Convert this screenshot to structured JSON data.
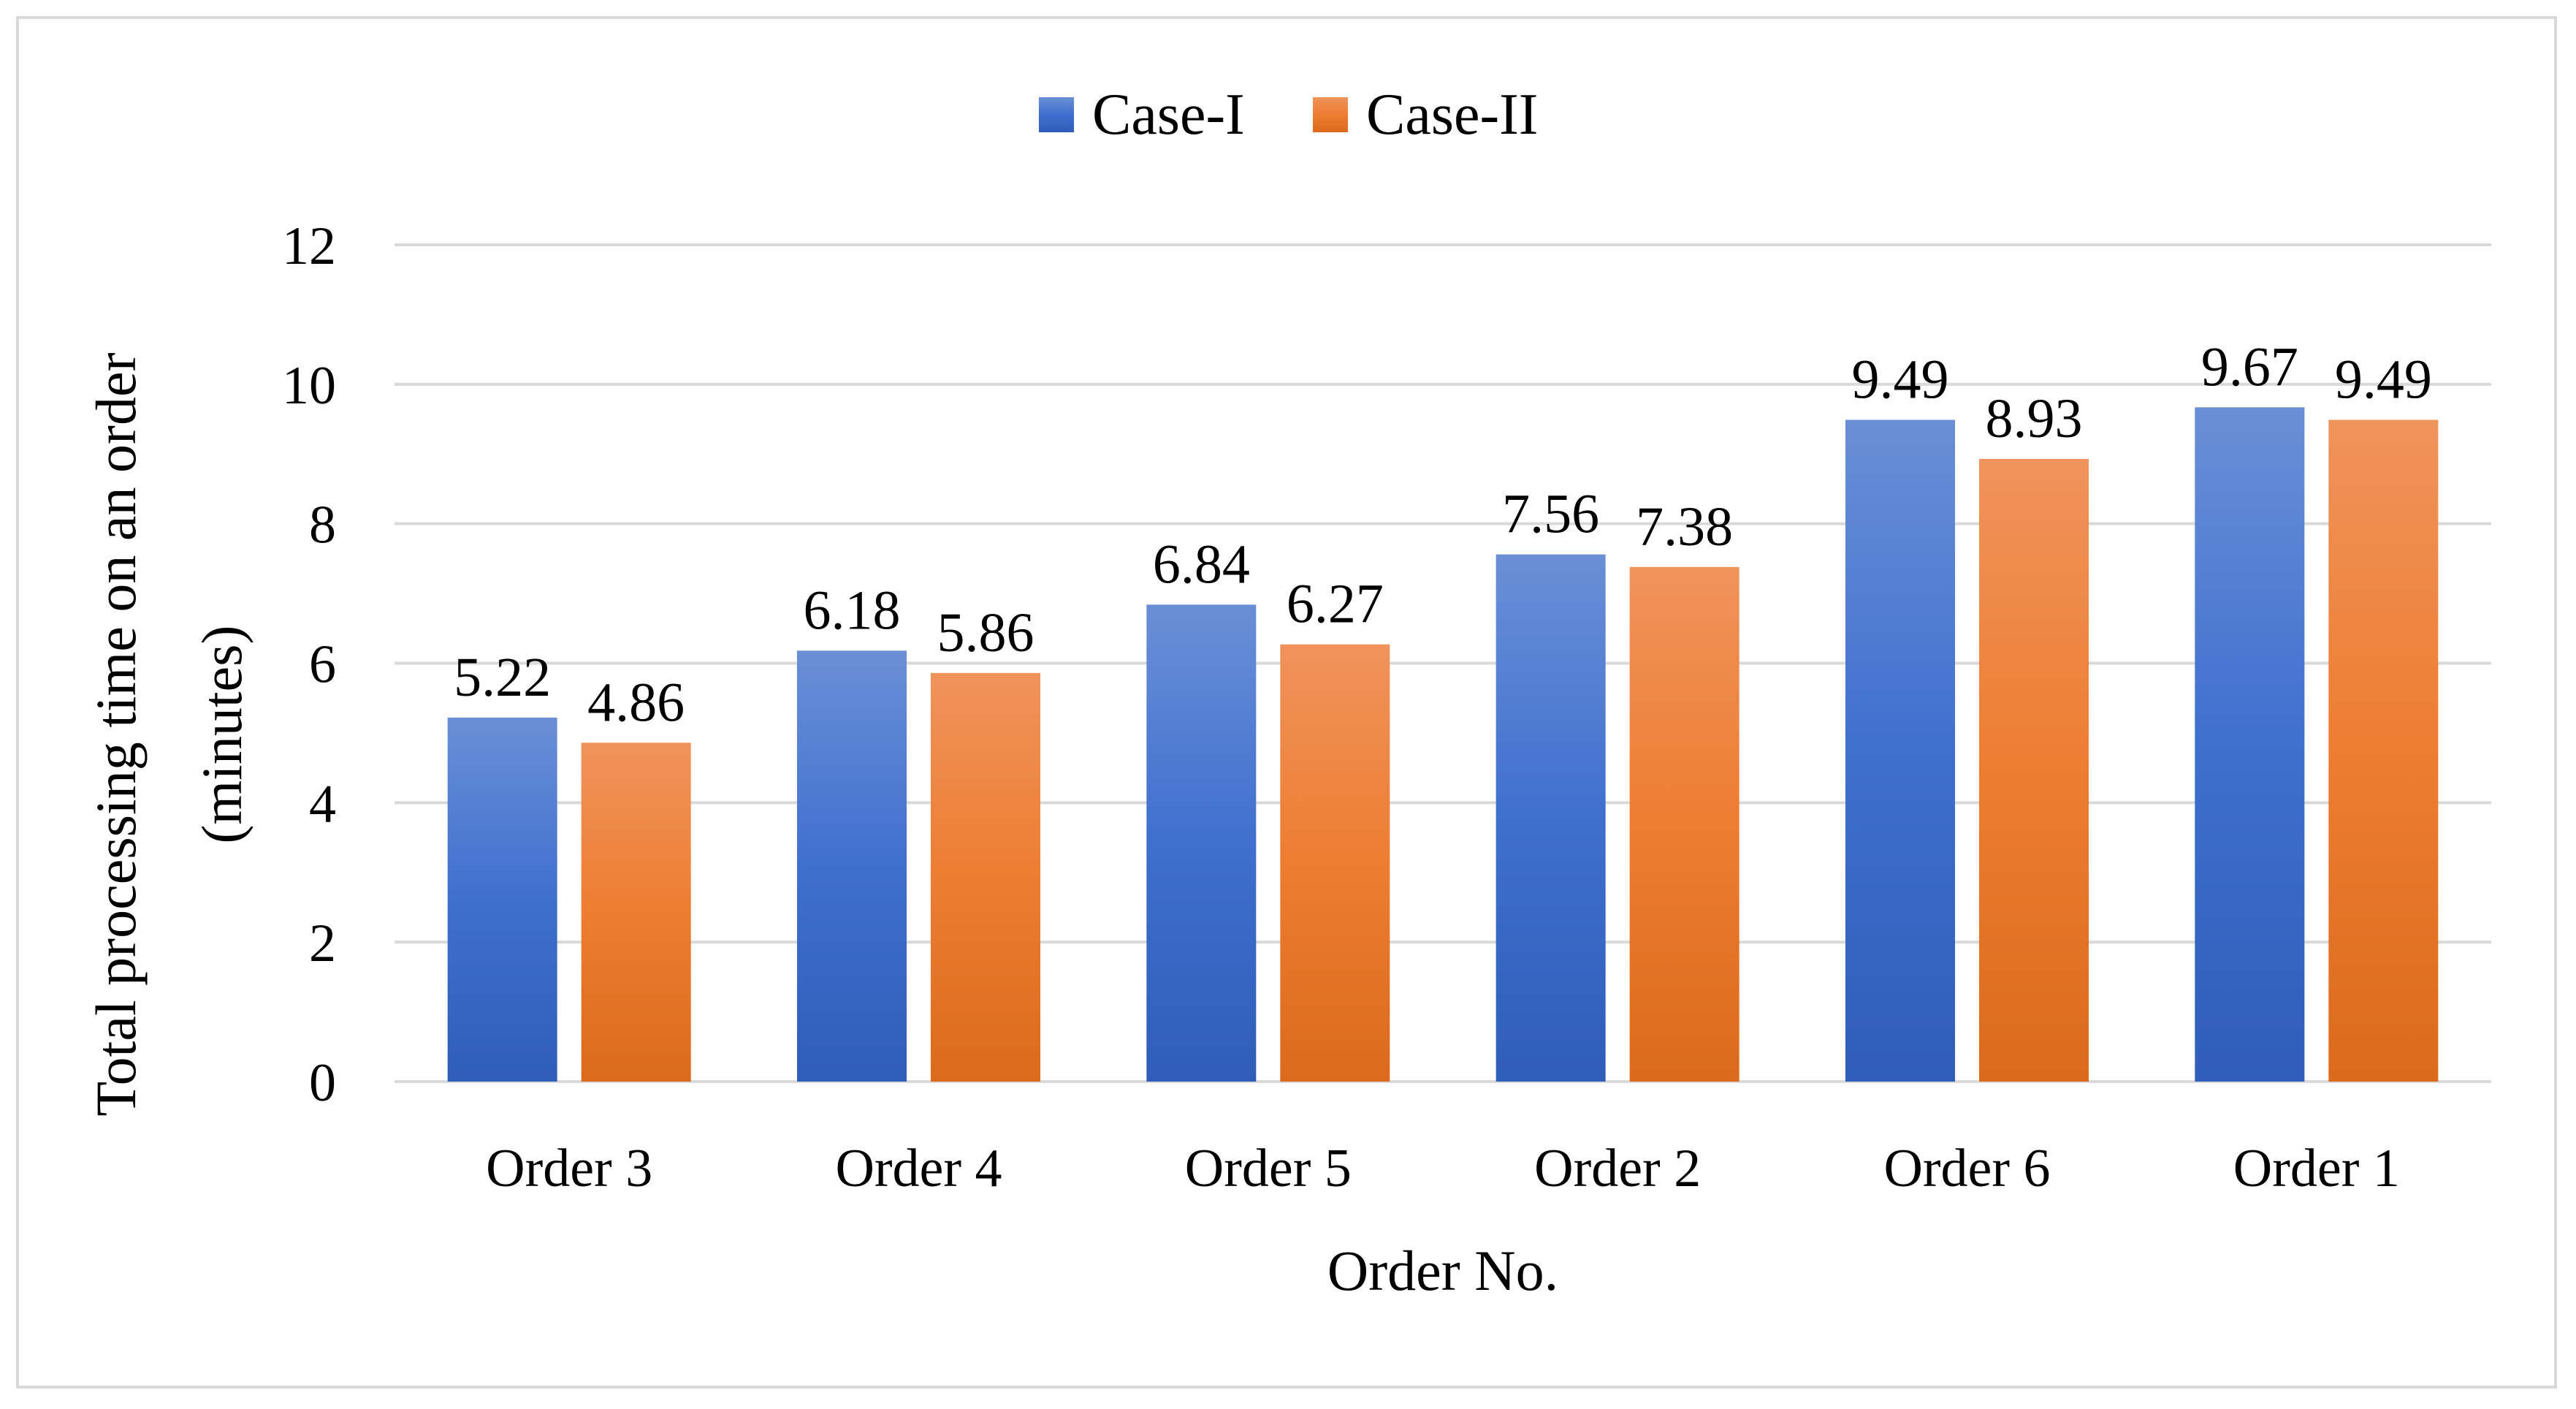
{
  "chart_data": {
    "type": "bar",
    "title": "",
    "xlabel": "Order No.",
    "ylabel": "Total processing time on an order (minutes)",
    "ylabel_lines": [
      "Total processing time on an order",
      "(minutes)"
    ],
    "categories": [
      "Order 3",
      "Order 4",
      "Order 5",
      "Order 2",
      "Order 6",
      "Order 1"
    ],
    "series": [
      {
        "name": "Case-I",
        "values": [
          5.22,
          6.18,
          6.84,
          7.56,
          9.49,
          9.67
        ],
        "labels": [
          "5.22",
          "6.18",
          "6.84",
          "7.56",
          "9.49",
          "9.67"
        ],
        "color": "#4472c4"
      },
      {
        "name": "Case-II",
        "values": [
          4.86,
          5.86,
          6.27,
          7.38,
          8.93,
          9.49
        ],
        "labels": [
          "4.86",
          "5.86",
          "6.27",
          "7.38",
          "8.93",
          "9.49"
        ],
        "color": "#ed7d31"
      }
    ],
    "ylim": [
      0,
      12
    ],
    "yticks": [
      0,
      2,
      4,
      6,
      8,
      10,
      12
    ],
    "grid": true,
    "legend": "top-center"
  }
}
